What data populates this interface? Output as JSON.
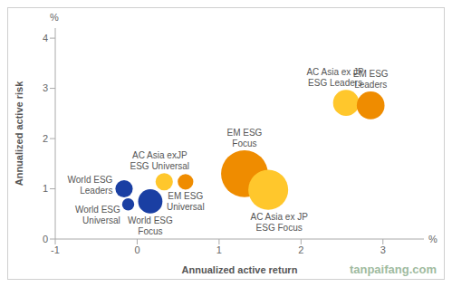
{
  "chart_data": {
    "type": "scatter",
    "xlabel": "Annualized active return",
    "ylabel": "Annualized active risk",
    "x_unit": "%",
    "y_unit": "%",
    "watermark": "tanpaifang.com",
    "labels": [
      "World ESG Leaders",
      "World ESG Universal",
      "World ESG Focus",
      "AC Asia exJP ESG Universal",
      "EM ESG Universal",
      "EM ESG Focus",
      "AC Asia ex JP ESG Focus",
      "AC Asia ex JP ESG Leaders",
      "EM ESG Leaders"
    ],
    "x": [
      -0.16,
      -0.11,
      0.16,
      0.33,
      0.59,
      1.31,
      1.6,
      2.55,
      2.85
    ],
    "y": [
      1.0,
      0.69,
      0.75,
      1.14,
      1.14,
      1.3,
      0.98,
      2.71,
      2.66
    ],
    "sizes": [
      100,
      49,
      196,
      100,
      81,
      729,
      529,
      225,
      256
    ],
    "colors": [
      "#1a3fa3",
      "#1a3fa3",
      "#1a3fa3",
      "#ffc72c",
      "#ef8c00",
      "#ef8c00",
      "#ffc72c",
      "#ffc72c",
      "#ef8c00"
    ],
    "xlim": [
      -1,
      3.5
    ],
    "xticks": [
      -1,
      0,
      1,
      2,
      3
    ],
    "ylim": [
      0,
      4.2
    ],
    "yticks": [
      0,
      1,
      2,
      3,
      4
    ],
    "grid": false
  }
}
